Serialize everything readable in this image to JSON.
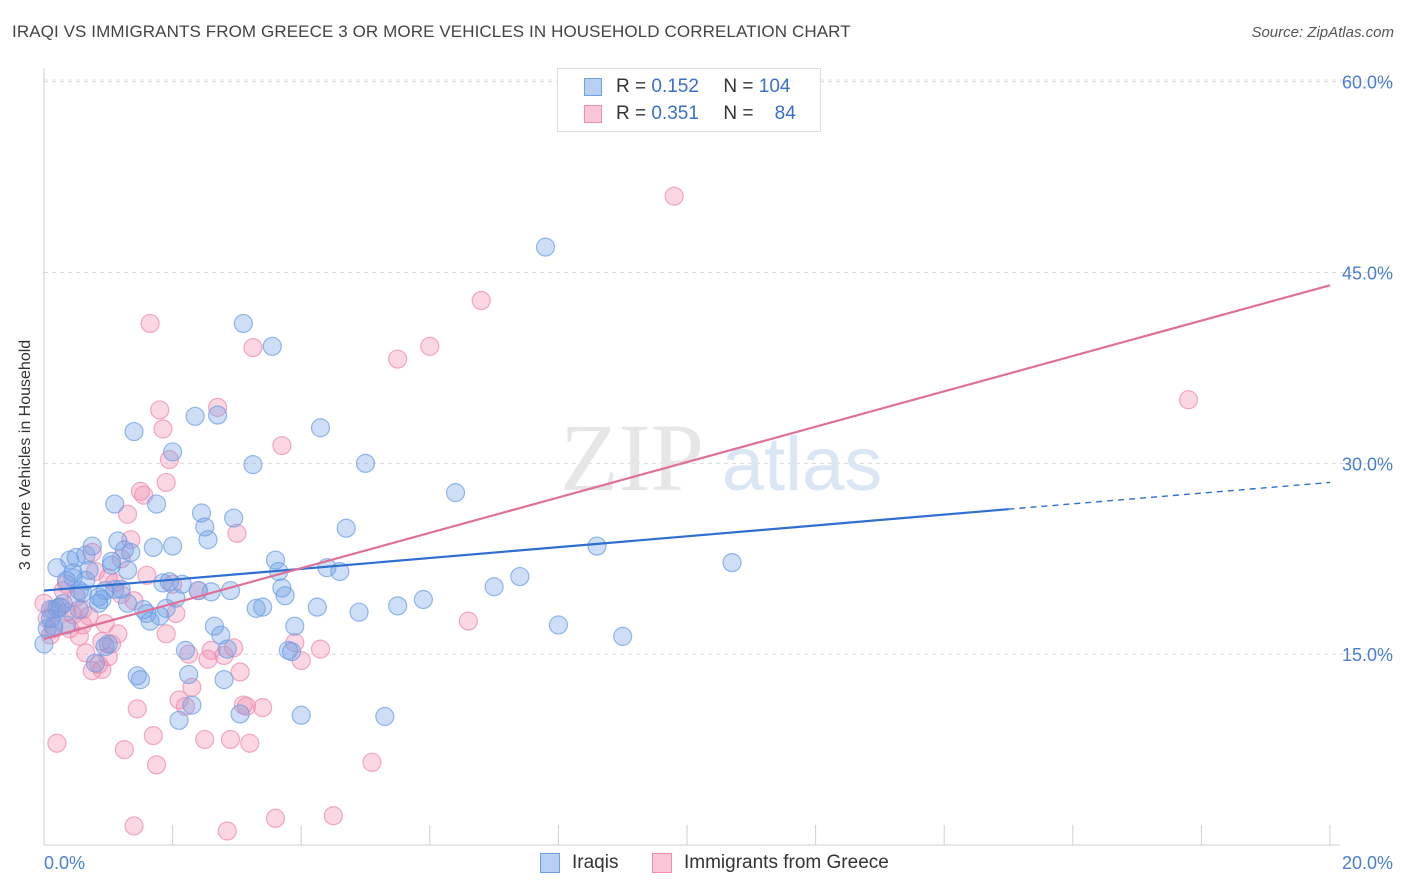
{
  "title": "IRAQI VS IMMIGRANTS FROM GREECE 3 OR MORE VEHICLES IN HOUSEHOLD CORRELATION CHART",
  "source": "Source: ZipAtlas.com",
  "watermark": {
    "zip": "ZIP",
    "atlas": "atlas"
  },
  "legend": {
    "rows": [
      {
        "r_label": "R =",
        "r_value": "0.152",
        "n_label": "N =",
        "n_value": "104"
      },
      {
        "r_label": "R =",
        "r_value": "0.351",
        "n_label": "N =",
        "n_value": "84"
      }
    ]
  },
  "colors": {
    "iraqis": "#6fa0e6",
    "greece": "#f08cb0",
    "iraqis_line": "#2f6fd0",
    "greece_line": "#e07098",
    "tick_text": "#4a7fd0"
  },
  "chart_data": {
    "type": "scatter",
    "title": "IRAQI VS IMMIGRANTS FROM GREECE 3 OR MORE VEHICLES IN HOUSEHOLD CORRELATION CHART",
    "xlabel": "",
    "ylabel": "3 or more Vehicles in Household",
    "x_tick_labels": [
      "0.0%",
      "20.0%"
    ],
    "y_tick_labels": [
      "15.0%",
      "30.0%",
      "45.0%",
      "60.0%"
    ],
    "xlim": [
      0,
      20
    ],
    "ylim": [
      0,
      63
    ],
    "grid": "horizontal dashed",
    "legend_placement": "bottom-center",
    "series": [
      {
        "name": "Iraqis",
        "r": 0.152,
        "n": 104,
        "trend": {
          "x0": 0,
          "y0": 20.0,
          "x1": 15.0,
          "y1": 26.4,
          "dashed_to_x": 20,
          "dashed_y": 28.5
        },
        "points": [
          [
            0.0,
            15.8
          ],
          [
            0.05,
            17.0
          ],
          [
            0.1,
            18.5
          ],
          [
            0.15,
            17.2
          ],
          [
            0.2,
            21.8
          ],
          [
            0.2,
            18.6
          ],
          [
            0.3,
            19.0
          ],
          [
            0.35,
            20.8
          ],
          [
            0.4,
            22.4
          ],
          [
            0.45,
            21.4
          ],
          [
            0.5,
            22.6
          ],
          [
            0.55,
            18.5
          ],
          [
            0.6,
            19.8
          ],
          [
            0.65,
            22.8
          ],
          [
            0.7,
            21.6
          ],
          [
            0.75,
            23.5
          ],
          [
            0.8,
            14.3
          ],
          [
            0.85,
            19.5
          ],
          [
            0.9,
            19.3
          ],
          [
            0.95,
            20.0
          ],
          [
            1.0,
            15.8
          ],
          [
            1.05,
            22.0
          ],
          [
            1.1,
            26.8
          ],
          [
            1.1,
            20.1
          ],
          [
            1.15,
            23.9
          ],
          [
            1.2,
            20.1
          ],
          [
            1.25,
            23.2
          ],
          [
            1.3,
            19.0
          ],
          [
            1.3,
            21.6
          ],
          [
            1.35,
            23.0
          ],
          [
            1.4,
            32.5
          ],
          [
            1.45,
            13.3
          ],
          [
            1.5,
            13.0
          ],
          [
            1.55,
            18.5
          ],
          [
            1.6,
            18.2
          ],
          [
            1.65,
            17.6
          ],
          [
            1.7,
            23.4
          ],
          [
            1.75,
            26.8
          ],
          [
            1.8,
            18.0
          ],
          [
            1.85,
            20.6
          ],
          [
            1.9,
            18.6
          ],
          [
            1.95,
            20.7
          ],
          [
            2.0,
            23.5
          ],
          [
            2.0,
            30.9
          ],
          [
            2.05,
            19.4
          ],
          [
            2.1,
            9.8
          ],
          [
            2.15,
            20.5
          ],
          [
            2.2,
            15.3
          ],
          [
            2.25,
            13.4
          ],
          [
            2.3,
            11.0
          ],
          [
            2.35,
            33.7
          ],
          [
            2.4,
            20.0
          ],
          [
            2.45,
            26.1
          ],
          [
            2.5,
            25.0
          ],
          [
            2.55,
            24.0
          ],
          [
            2.6,
            19.9
          ],
          [
            2.65,
            17.2
          ],
          [
            2.7,
            33.8
          ],
          [
            2.75,
            16.5
          ],
          [
            2.8,
            13.0
          ],
          [
            2.85,
            15.4
          ],
          [
            2.9,
            20.0
          ],
          [
            2.95,
            25.7
          ],
          [
            3.05,
            10.3
          ],
          [
            3.1,
            41.0
          ],
          [
            3.25,
            29.9
          ],
          [
            3.3,
            18.6
          ],
          [
            3.4,
            18.7
          ],
          [
            3.55,
            39.2
          ],
          [
            3.6,
            22.4
          ],
          [
            3.65,
            21.5
          ],
          [
            3.7,
            20.2
          ],
          [
            3.75,
            19.6
          ],
          [
            3.8,
            15.3
          ],
          [
            3.85,
            15.2
          ],
          [
            3.9,
            17.2
          ],
          [
            4.0,
            10.2
          ],
          [
            4.25,
            18.7
          ],
          [
            4.3,
            32.8
          ],
          [
            4.4,
            21.8
          ],
          [
            4.6,
            21.5
          ],
          [
            4.7,
            24.9
          ],
          [
            4.9,
            18.3
          ],
          [
            5.0,
            30.0
          ],
          [
            5.3,
            10.1
          ],
          [
            5.5,
            18.8
          ],
          [
            5.9,
            19.3
          ],
          [
            6.4,
            27.7
          ],
          [
            7.0,
            20.3
          ],
          [
            7.4,
            21.1
          ],
          [
            7.8,
            47.0
          ],
          [
            8.0,
            17.3
          ],
          [
            8.6,
            23.5
          ],
          [
            9.0,
            16.4
          ],
          [
            10.7,
            22.2
          ],
          [
            0.1,
            17.8
          ],
          [
            0.25,
            18.7
          ],
          [
            0.35,
            17.3
          ],
          [
            0.45,
            21.0
          ],
          [
            0.55,
            20.0
          ],
          [
            0.65,
            20.8
          ],
          [
            0.85,
            19.0
          ],
          [
            0.95,
            15.6
          ],
          [
            1.05,
            22.3
          ]
        ]
      },
      {
        "name": "Immigrants from Greece",
        "r": 0.351,
        "n": 84,
        "trend": {
          "x0": 0,
          "y0": 16.2,
          "x1": 20,
          "y1": 44.0
        },
        "points": [
          [
            0.0,
            19.0
          ],
          [
            0.05,
            17.8
          ],
          [
            0.1,
            16.5
          ],
          [
            0.15,
            18.5
          ],
          [
            0.2,
            8.0
          ],
          [
            0.25,
            18.7
          ],
          [
            0.3,
            20.0
          ],
          [
            0.35,
            18.3
          ],
          [
            0.4,
            17.0
          ],
          [
            0.45,
            18.1
          ],
          [
            0.5,
            19.5
          ],
          [
            0.55,
            16.4
          ],
          [
            0.6,
            18.5
          ],
          [
            0.65,
            15.1
          ],
          [
            0.7,
            18.0
          ],
          [
            0.75,
            13.7
          ],
          [
            0.8,
            21.5
          ],
          [
            0.85,
            14.2
          ],
          [
            0.9,
            16.0
          ],
          [
            0.95,
            17.4
          ],
          [
            1.0,
            21.0
          ],
          [
            1.05,
            15.8
          ],
          [
            1.1,
            20.6
          ],
          [
            1.15,
            16.6
          ],
          [
            1.2,
            22.5
          ],
          [
            1.25,
            7.5
          ],
          [
            1.3,
            26.0
          ],
          [
            1.35,
            24.0
          ],
          [
            1.4,
            19.2
          ],
          [
            1.45,
            10.7
          ],
          [
            1.5,
            27.8
          ],
          [
            1.55,
            27.5
          ],
          [
            1.6,
            21.2
          ],
          [
            1.65,
            41.0
          ],
          [
            1.7,
            8.6
          ],
          [
            1.75,
            6.3
          ],
          [
            1.8,
            34.2
          ],
          [
            1.85,
            32.7
          ],
          [
            1.9,
            16.6
          ],
          [
            1.95,
            30.3
          ],
          [
            2.0,
            20.5
          ],
          [
            2.05,
            18.2
          ],
          [
            2.1,
            11.4
          ],
          [
            2.2,
            10.9
          ],
          [
            2.3,
            12.4
          ],
          [
            2.4,
            20.0
          ],
          [
            2.5,
            8.3
          ],
          [
            2.55,
            14.6
          ],
          [
            2.6,
            15.3
          ],
          [
            2.7,
            34.4
          ],
          [
            2.8,
            14.9
          ],
          [
            2.85,
            1.1
          ],
          [
            2.9,
            8.3
          ],
          [
            2.95,
            15.5
          ],
          [
            3.0,
            24.5
          ],
          [
            3.05,
            13.6
          ],
          [
            3.1,
            11.0
          ],
          [
            3.15,
            10.9
          ],
          [
            3.2,
            8.0
          ],
          [
            3.25,
            39.1
          ],
          [
            3.4,
            10.8
          ],
          [
            3.6,
            2.1
          ],
          [
            3.7,
            31.4
          ],
          [
            3.9,
            15.9
          ],
          [
            4.0,
            14.5
          ],
          [
            4.3,
            15.4
          ],
          [
            4.5,
            2.3
          ],
          [
            5.1,
            6.5
          ],
          [
            5.5,
            38.2
          ],
          [
            6.0,
            39.2
          ],
          [
            6.6,
            17.6
          ],
          [
            6.8,
            42.8
          ],
          [
            9.8,
            51.0
          ],
          [
            17.8,
            35.0
          ],
          [
            1.4,
            1.5
          ],
          [
            0.35,
            20.5
          ],
          [
            0.6,
            17.3
          ],
          [
            0.9,
            13.8
          ],
          [
            1.2,
            19.7
          ],
          [
            1.9,
            28.5
          ],
          [
            2.25,
            15.0
          ],
          [
            0.15,
            17.0
          ],
          [
            0.75,
            23.0
          ],
          [
            1.0,
            14.8
          ]
        ]
      }
    ]
  }
}
